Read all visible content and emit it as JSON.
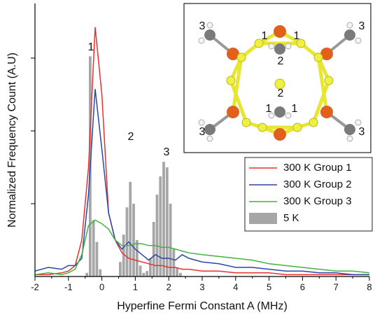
{
  "chart_data": {
    "type": "histogram",
    "xlabel": "Hyperfine Fermi Constant A (MHz)",
    "ylabel": "Normalized Frequency Count (A.U)",
    "xlim": [
      -2,
      8
    ],
    "xticks": [
      -2,
      -1,
      0,
      1,
      2,
      3,
      4,
      5,
      6,
      7,
      8
    ],
    "ylim": [
      0,
      1.5
    ],
    "yticks": [
      0.4,
      0.8,
      1.2
    ],
    "legend": "right",
    "histogram": {
      "name": "5 K",
      "color": "#a6a6a6",
      "bins": [
        -0.5,
        -0.4,
        -0.3,
        -0.2,
        -0.1,
        0,
        0.1,
        0.2,
        0.3,
        0.4,
        0.5,
        0.6,
        0.7,
        0.8,
        0.9,
        1.0,
        1.1,
        1.2,
        1.3,
        1.4,
        1.5,
        1.6,
        1.7,
        1.8,
        1.9,
        2.0,
        2.1,
        2.2,
        2.3,
        2.4
      ],
      "counts": [
        0.02,
        1.21,
        0.31,
        0.19,
        0.04,
        0,
        0,
        0,
        0,
        0,
        0.08,
        0.23,
        0.38,
        0.52,
        0.4,
        0.2,
        0.06,
        0.02,
        0.03,
        0.1,
        0.3,
        0.45,
        0.55,
        0.63,
        0.6,
        0.4,
        0.15,
        0.05,
        0.02
      ]
    },
    "x": [
      -2,
      -1.6,
      -1.2,
      -1,
      -0.8,
      -0.6,
      -0.4,
      -0.2,
      0,
      0.2,
      0.4,
      0.6,
      0.8,
      1,
      1.2,
      1.4,
      1.6,
      1.8,
      2,
      2.2,
      2.4,
      2.6,
      3,
      3.5,
      4,
      4.5,
      5,
      5.5,
      6,
      6.5,
      7,
      7.5,
      8
    ],
    "series": [
      {
        "name": "300 K Group 1",
        "color": "#e8312f",
        "values": [
          0.01,
          0.01,
          0.02,
          0.03,
          0.06,
          0.2,
          0.6,
          1.37,
          1.0,
          0.35,
          0.2,
          0.13,
          0.1,
          0.09,
          0.08,
          0.07,
          0.06,
          0.06,
          0.05,
          0.05,
          0.04,
          0.04,
          0.03,
          0.03,
          0.02,
          0.02,
          0.02,
          0.01,
          0.01,
          0.01,
          0.01,
          0.01,
          0.01
        ]
      },
      {
        "name": "300 K Group 2",
        "color": "#2b47a8",
        "values": [
          0.03,
          0.05,
          0.04,
          0.06,
          0.06,
          0.1,
          0.45,
          1.03,
          0.7,
          0.35,
          0.2,
          0.15,
          0.19,
          0.15,
          0.12,
          0.09,
          0.12,
          0.1,
          0.1,
          0.09,
          0.12,
          0.1,
          0.08,
          0.07,
          0.05,
          0.05,
          0.04,
          0.03,
          0.03,
          0.02,
          0.02,
          0.01,
          0.01
        ]
      },
      {
        "name": "300 K Group 3",
        "color": "#3fb53a",
        "values": [
          0.01,
          0.02,
          0.01,
          0.02,
          0.04,
          0.12,
          0.28,
          0.31,
          0.29,
          0.26,
          0.2,
          0.17,
          0.17,
          0.18,
          0.18,
          0.17,
          0.17,
          0.16,
          0.16,
          0.15,
          0.14,
          0.13,
          0.12,
          0.11,
          0.1,
          0.09,
          0.07,
          0.06,
          0.05,
          0.04,
          0.03,
          0.03,
          0.02
        ]
      }
    ],
    "annotations": [
      "1",
      "2",
      "3"
    ],
    "inset_labels": [
      "3",
      "1",
      "1",
      "2",
      "2",
      "1",
      "1",
      "3",
      "3",
      "3"
    ]
  }
}
